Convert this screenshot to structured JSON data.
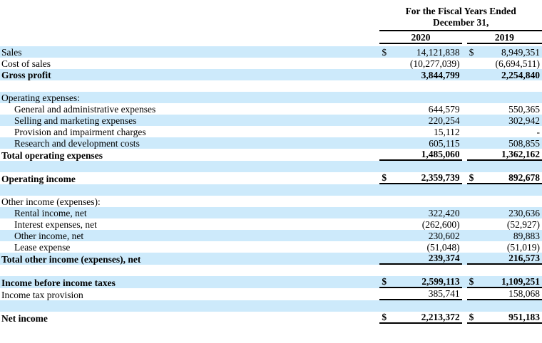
{
  "header": {
    "title_line1": "For the Fiscal Years Ended",
    "title_line2": "December 31,",
    "col_2020": "2020",
    "col_2019": "2019"
  },
  "colors": {
    "stripe_blue": "#cdeafb",
    "rule_black": "#000000"
  },
  "rows": [
    {
      "label": "Sales",
      "stripe": true,
      "d2020": "$",
      "v2020": "14,121,838",
      "d2019": "$",
      "v2019": "8,949,351"
    },
    {
      "label": "Cost of sales",
      "v2020": "(10,277,039)",
      "v2019": "(6,694,511)"
    },
    {
      "label": "Gross profit",
      "bold": true,
      "stripe": true,
      "v2020": "3,844,799",
      "v2019": "2,254,840"
    },
    {
      "blank": true
    },
    {
      "label": "Operating expenses:",
      "stripe": true
    },
    {
      "label": "General and administrative expenses",
      "indent": true,
      "v2020": "644,579",
      "v2019": "550,365"
    },
    {
      "label": "Selling and marketing expenses",
      "indent": true,
      "stripe": true,
      "v2020": "220,254",
      "v2019": "302,942"
    },
    {
      "label": "Provision and impairment charges",
      "indent": true,
      "v2020": "15,112",
      "v2019": "-"
    },
    {
      "label": "Research and development costs",
      "indent": true,
      "stripe": true,
      "v2020": "605,115",
      "v2019": "508,855"
    },
    {
      "label": "Total operating expenses",
      "bold": true,
      "v2020": "1,485,060",
      "v2019": "1,362,162",
      "rule": "single"
    },
    {
      "blank": true,
      "stripe": true
    },
    {
      "label": "Operating income",
      "bold": true,
      "d2020": "$",
      "v2020": "2,359,739",
      "d2019": "$",
      "v2019": "892,678",
      "rule": "single"
    },
    {
      "blank": true,
      "stripe": true
    },
    {
      "label": "Other income (expenses):"
    },
    {
      "label": "Rental income, net",
      "indent": true,
      "stripe": true,
      "v2020": "322,420",
      "v2019": "230,636"
    },
    {
      "label": "Interest expenses, net",
      "indent": true,
      "v2020": "(262,600)",
      "v2019": "(52,927)"
    },
    {
      "label": "Other income, net",
      "indent": true,
      "stripe": true,
      "v2020": "230,602",
      "v2019": "89,883"
    },
    {
      "label": "Lease expense",
      "indent": true,
      "v2020": "(51,048)",
      "v2019": "(51,019)"
    },
    {
      "label": "Total other income (expenses), net",
      "bold": true,
      "stripe": true,
      "v2020": "239,374",
      "v2019": "216,573",
      "rule": "single"
    },
    {
      "blank": true
    },
    {
      "label": "Income before income taxes",
      "bold": true,
      "stripe": true,
      "d2020": "$",
      "v2020": "2,599,113",
      "d2019": "$",
      "v2019": "1,109,251",
      "rule": "single"
    },
    {
      "label": "Income tax provision",
      "v2020": "385,741",
      "v2019": "158,068",
      "rule": "single"
    },
    {
      "blank": true,
      "stripe": true
    },
    {
      "label": "Net income",
      "bold": true,
      "d2020": "$",
      "v2020": "2,213,372",
      "d2019": "$",
      "v2019": "951,183",
      "rule": "double"
    }
  ]
}
